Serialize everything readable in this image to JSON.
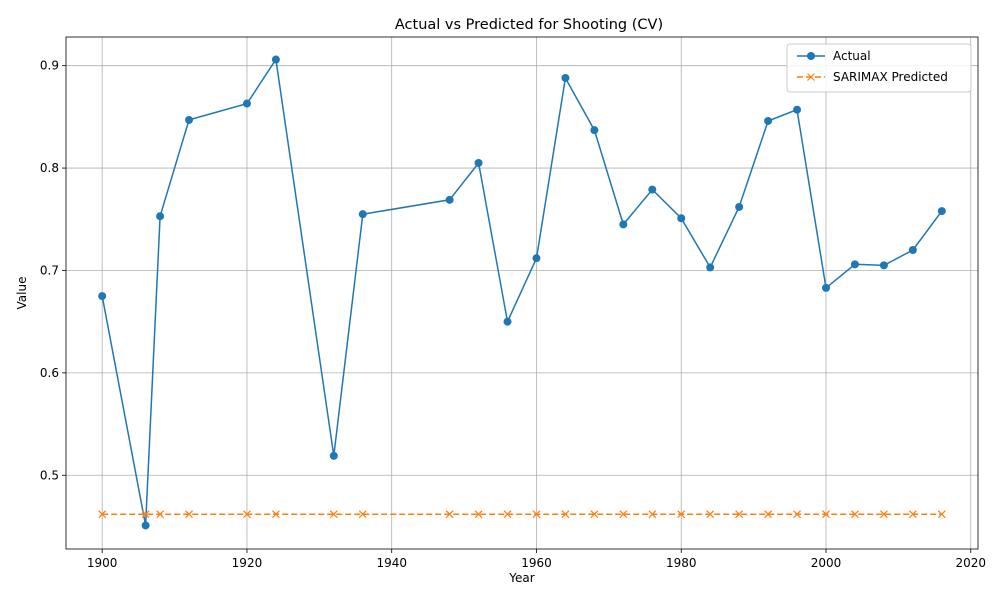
{
  "chart_data": {
    "type": "line",
    "title": "Actual vs Predicted for Shooting (CV)",
    "xlabel": "Year",
    "ylabel": "Value",
    "xlim": [
      1895,
      2021
    ],
    "ylim": [
      0.428,
      0.928
    ],
    "x_ticks": [
      1900,
      1920,
      1940,
      1960,
      1980,
      2000,
      2020
    ],
    "y_ticks": [
      0.5,
      0.6,
      0.7,
      0.8,
      0.9
    ],
    "grid": true,
    "legend_position": "top-right",
    "x": [
      1900,
      1906,
      1908,
      1912,
      1920,
      1924,
      1932,
      1936,
      1948,
      1952,
      1956,
      1960,
      1964,
      1968,
      1972,
      1976,
      1980,
      1984,
      1988,
      1992,
      1996,
      2000,
      2004,
      2008,
      2012,
      2016
    ],
    "series": [
      {
        "name": "Actual",
        "color": "#1f77b4",
        "marker": "circle",
        "line_style": "solid",
        "values": [
          0.675,
          0.451,
          0.753,
          0.847,
          0.863,
          0.906,
          0.519,
          0.755,
          0.769,
          0.805,
          0.65,
          0.712,
          0.888,
          0.837,
          0.745,
          0.779,
          0.751,
          0.703,
          0.762,
          0.846,
          0.857,
          0.683,
          0.706,
          0.705,
          0.72,
          0.758
        ]
      },
      {
        "name": "SARIMAX Predicted",
        "color": "#ff7f0e",
        "marker": "x",
        "line_style": "dashed",
        "values": [
          0.462,
          0.462,
          0.462,
          0.462,
          0.462,
          0.462,
          0.462,
          0.462,
          0.462,
          0.462,
          0.462,
          0.462,
          0.462,
          0.462,
          0.462,
          0.462,
          0.462,
          0.462,
          0.462,
          0.462,
          0.462,
          0.462,
          0.462,
          0.462,
          0.462,
          0.462
        ]
      }
    ]
  }
}
